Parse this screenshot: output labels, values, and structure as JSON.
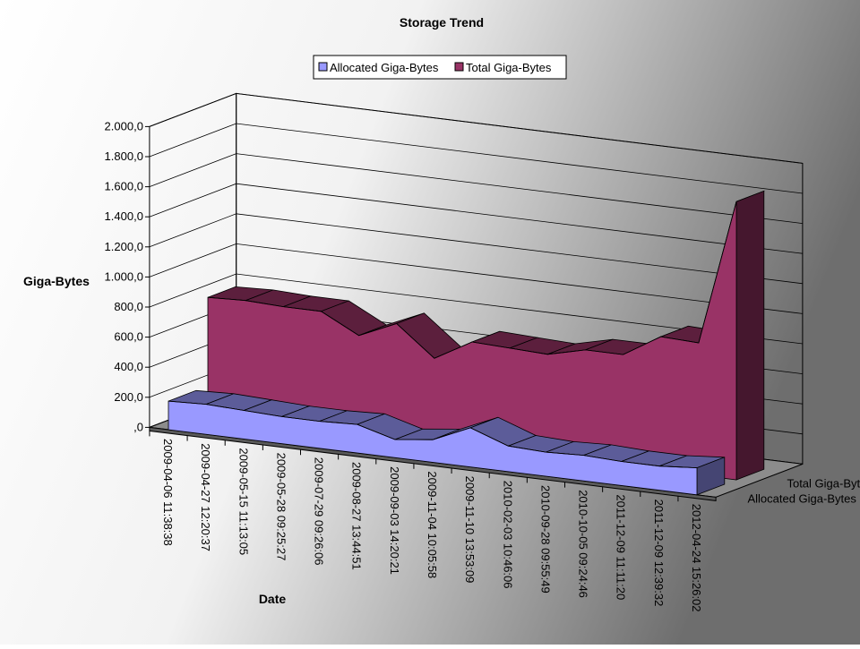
{
  "chart_data": {
    "type": "area3d",
    "title": "Storage Trend",
    "y_label": "Giga-Bytes",
    "x_label": "Date",
    "categories": [
      "2009-04-06 11:38:38",
      "2009-04-27 12:20:37",
      "2009-05-15 11:13:05",
      "2009-05-28 09:25:27",
      "2009-07-29 09:26:06",
      "2009-08-27 13:44:51",
      "2009-09-03 14:20:21",
      "2009-11-04 10:05:58",
      "2009-11-10 13:53:09",
      "2010-02-03 10:46:06",
      "2010-09-28 09:55:49",
      "2010-10-05 09:24:46",
      "2011-12-09 11:11:20",
      "2011-12-09 12:39:32",
      "2012-04-24 15:26:02"
    ],
    "series": [
      {
        "name": "Allocated Giga-Bytes",
        "color": "#9999ff",
        "values": [
          190,
          200,
          190,
          180,
          180,
          190,
          120,
          150,
          260,
          170,
          160,
          170,
          160,
          160,
          180
        ]
      },
      {
        "name": "Total Giga-Bytes",
        "color": "#993366",
        "values": [
          780,
          790,
          780,
          780,
          650,
          760,
          560,
          700,
          690,
          680,
          740,
          740,
          890,
          880,
          1850
        ]
      }
    ],
    "ylim": [
      0,
      2000
    ],
    "yticks": [
      {
        "value": 0,
        "label": ",0"
      },
      {
        "value": 200,
        "label": "200,0"
      },
      {
        "value": 400,
        "label": "400,0"
      },
      {
        "value": 600,
        "label": "600,0"
      },
      {
        "value": 800,
        "label": "800,0"
      },
      {
        "value": 1000,
        "label": "1.000,0"
      },
      {
        "value": 1200,
        "label": "1.200,0"
      },
      {
        "value": 1400,
        "label": "1.400,0"
      },
      {
        "value": 1600,
        "label": "1.600,0"
      },
      {
        "value": 1800,
        "label": "1.800,0"
      },
      {
        "value": 2000,
        "label": "2.000,0"
      }
    ],
    "grid": true,
    "legend": "top"
  }
}
